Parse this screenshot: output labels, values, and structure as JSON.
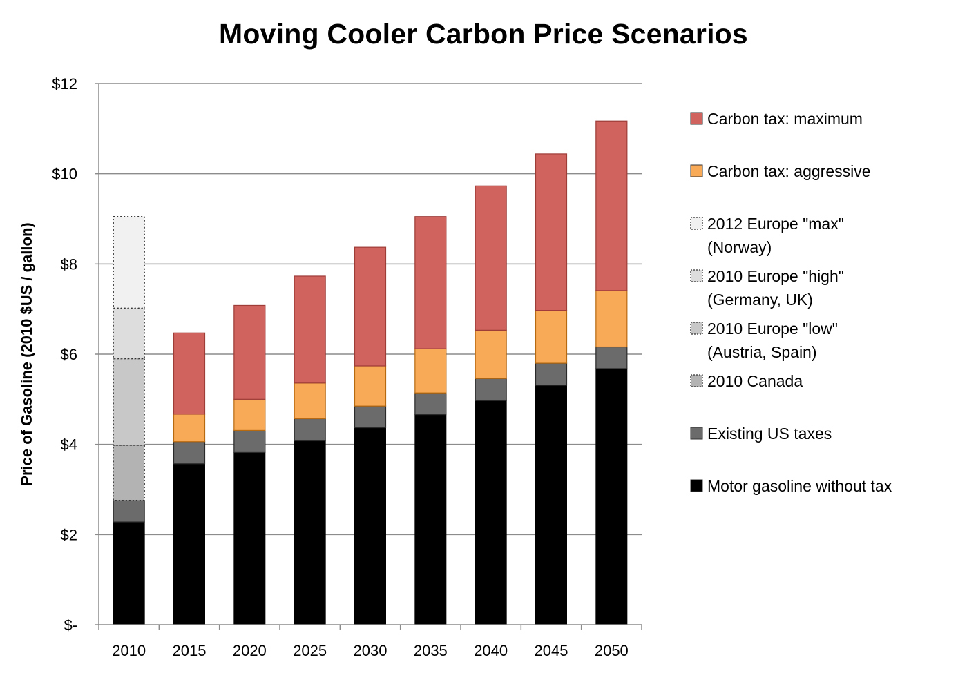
{
  "chart_data": {
    "type": "bar",
    "stacked": true,
    "title": "Moving Cooler Carbon Price Scenarios",
    "xlabel": "",
    "ylabel": "Price of Gasoline (2010 $US / gallon)",
    "ylim": [
      0,
      12
    ],
    "y_ticks": [
      0,
      2,
      4,
      6,
      8,
      10,
      12
    ],
    "y_tick_labels": [
      "$-",
      "$2",
      "$4",
      "$6",
      "$8",
      "$10",
      "$12"
    ],
    "grid": true,
    "legend_position": "right",
    "categories": [
      "2010",
      "2015",
      "2020",
      "2025",
      "2030",
      "2035",
      "2040",
      "2045",
      "2050"
    ],
    "series": [
      {
        "name": "Motor gasoline without tax",
        "color": "#000000",
        "style": "solid",
        "values": [
          2.28,
          3.57,
          3.82,
          4.08,
          4.37,
          4.66,
          4.97,
          5.31,
          5.68
        ]
      },
      {
        "name": "Existing US taxes",
        "color": "#6b6b6b",
        "style": "solid",
        "values": [
          0.48,
          0.49,
          0.49,
          0.49,
          0.48,
          0.48,
          0.49,
          0.49,
          0.48
        ]
      },
      {
        "name": "2010 Canada",
        "color": "#b3b3b3",
        "style": "dotted",
        "values": [
          1.22,
          null,
          null,
          null,
          null,
          null,
          null,
          null,
          null
        ]
      },
      {
        "name": "2010 Europe \"low\"\n(Austria, Spain)",
        "color": "#c8c8c8",
        "style": "dotted",
        "values": [
          1.92,
          null,
          null,
          null,
          null,
          null,
          null,
          null,
          null
        ]
      },
      {
        "name": "2010 Europe \"high\"\n(Germany, UK)",
        "color": "#dddddd",
        "style": "dotted",
        "values": [
          1.12,
          null,
          null,
          null,
          null,
          null,
          null,
          null,
          null
        ]
      },
      {
        "name": "2012 Europe \"max\"\n(Norway)",
        "color": "#f1f1f1",
        "style": "dotted",
        "values": [
          2.03,
          null,
          null,
          null,
          null,
          null,
          null,
          null,
          null
        ]
      },
      {
        "name": "Carbon tax: aggressive",
        "color": "#f9aa57",
        "style": "solid",
        "values": [
          null,
          0.61,
          0.69,
          0.79,
          0.89,
          0.98,
          1.07,
          1.17,
          1.25
        ]
      },
      {
        "name": "Carbon tax: maximum",
        "color": "#d0635d",
        "style": "solid",
        "values": [
          null,
          1.8,
          2.08,
          2.37,
          2.63,
          2.93,
          3.2,
          3.47,
          3.76
        ]
      }
    ],
    "legend_order": [
      "Carbon tax: maximum",
      "Carbon tax: aggressive",
      "2012 Europe \"max\"\n(Norway)",
      "2010 Europe \"high\"\n(Germany, UK)",
      "2010 Europe \"low\"\n(Austria, Spain)",
      "2010 Canada",
      "Existing US taxes",
      "Motor gasoline without tax"
    ]
  }
}
